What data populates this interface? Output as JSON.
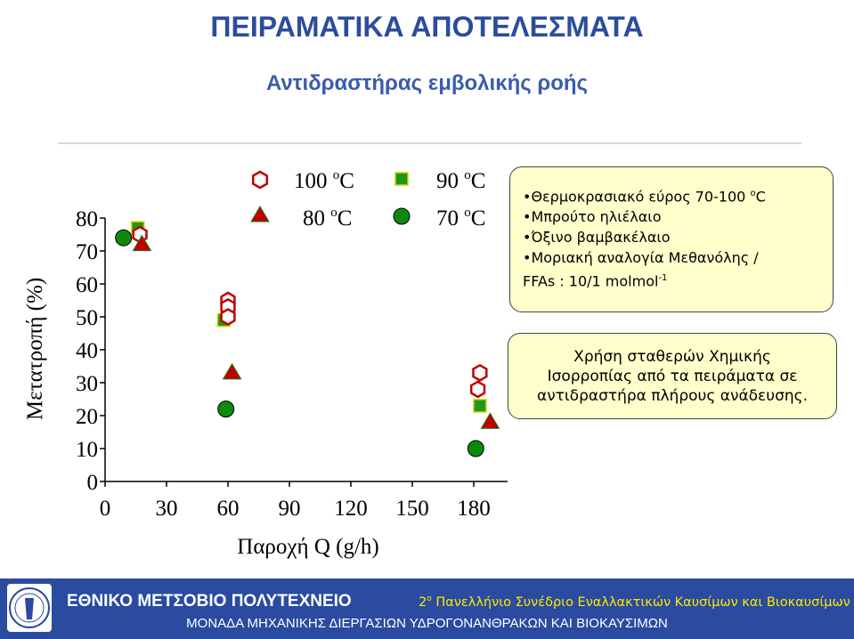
{
  "header": {
    "title": "ΠΕΙΡΑΜΑΤΙΚΑ ΑΠΟΤΕΛΕΣΜΑΤΑ",
    "subtitle": "Αντιδραστήρας εμβολικής ροής"
  },
  "chart_data": {
    "type": "scatter",
    "xlabel": "Παροχή Q (g/h)",
    "ylabel": "Μετατροπή (%)",
    "xlim": [
      0,
      200
    ],
    "ylim": [
      0,
      80
    ],
    "xticks": [
      0,
      30,
      60,
      90,
      120,
      150,
      180
    ],
    "yticks": [
      0,
      10,
      20,
      30,
      40,
      50,
      60,
      70,
      80
    ],
    "legend_position": "top",
    "series": [
      {
        "name": "100 oC",
        "marker": "hexagon",
        "color": "#c00000",
        "points": [
          {
            "x": 17,
            "y": 75
          },
          {
            "x": 60,
            "y": 55
          },
          {
            "x": 60,
            "y": 53
          },
          {
            "x": 60,
            "y": 50
          },
          {
            "x": 183,
            "y": 33
          },
          {
            "x": 182,
            "y": 28
          }
        ]
      },
      {
        "name": "90 oC",
        "marker": "square",
        "color": "#1a9a1a",
        "points": [
          {
            "x": 16,
            "y": 77
          },
          {
            "x": 58,
            "y": 49
          },
          {
            "x": 183,
            "y": 23
          }
        ]
      },
      {
        "name": "80 oC",
        "marker": "triangle",
        "color": "#c00000",
        "points": [
          {
            "x": 18,
            "y": 72
          },
          {
            "x": 62,
            "y": 33
          },
          {
            "x": 188,
            "y": 18
          }
        ]
      },
      {
        "name": "70 oC",
        "marker": "circle",
        "color": "#0c8a0c",
        "points": [
          {
            "x": 9,
            "y": 74
          },
          {
            "x": 59,
            "y": 22
          },
          {
            "x": 181,
            "y": 10
          }
        ]
      }
    ]
  },
  "legend": {
    "s100": "100 ",
    "s90": "90 ",
    "s80": "80 ",
    "s70": "70 ",
    "deg": "o",
    "unit": "C"
  },
  "info": {
    "line1": "Θερμοκρασιακό εύρος 70-100 ",
    "line1_sup": "o",
    "line1_unit": "C",
    "line2": "Μπρούτο ηλιέλαιο",
    "line3": "Όξινο βαμβακέλαιο",
    "line4": "Μοριακή αναλογία Μεθανόλης /",
    "line5": "FFAs : 10/1 molmol",
    "line5_sup": "-1",
    "bullet": "•"
  },
  "note": {
    "line1": "Χρήση σταθερών Χημικής",
    "line2": "Ισορροπίας από τα πειράματα σε",
    "line3": "αντιδραστήρα πλήρους ανάδευσης."
  },
  "footer": {
    "university": "ΕΘΝΙΚΟ ΜΕΤΣΟΒΙΟ ΠΟΛΥΤΕΧΝΕΙΟ",
    "conference_num": "2",
    "conference_sup": "ο",
    "conference": " Πανελλήνιο Συνέδριο Εναλλακτικών Καυσίμων και Βιοκαυσίμων",
    "unit": "ΜΟΝΑΔΑ ΜΗΧΑΝΙΚΗΣ ΔΙΕΡΓΑΣΙΩΝ ΥΔΡΟΓΟΝΑΝΘΡΑΚΩΝ ΚΑΙ ΒΙΟΚΑΥΣΙΜΩΝ"
  }
}
